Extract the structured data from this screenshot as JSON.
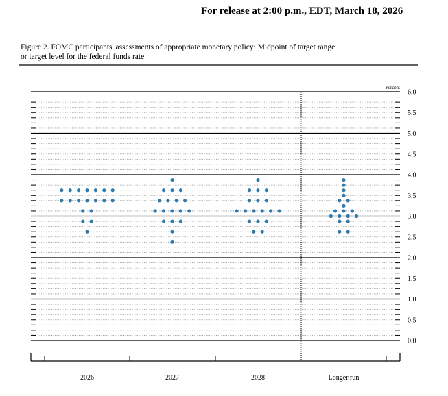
{
  "header": {
    "release_text": "For release at 2:00 p.m., EDT, March 18, 2026"
  },
  "figure": {
    "caption_line1": "Figure 2. FOMC participants' assessments of appropriate monetary policy: Midpoint of target range",
    "caption_line2": "or target level for the federal funds rate"
  },
  "chart_data": {
    "type": "scatter",
    "subtype": "dot-plot",
    "unit_label": "Percent",
    "categories": [
      "2026",
      "2027",
      "2028",
      "Longer run"
    ],
    "ylim": [
      0.0,
      6.0
    ],
    "y_ticks": [
      "6.0",
      "5.5",
      "5.0",
      "4.5",
      "4.0",
      "3.5",
      "3.0",
      "2.5",
      "2.0",
      "1.5",
      "1.0",
      "0.5",
      "0.0"
    ],
    "y_tick_values": [
      6.0,
      5.5,
      5.0,
      4.5,
      4.0,
      3.5,
      3.0,
      2.5,
      2.0,
      1.5,
      1.0,
      0.5,
      0.0
    ],
    "grid": "solid lines at whole numbers, dotted lines at 0.125 steps",
    "separator": "dotted vertical line before Longer run",
    "colors": {
      "dot": "#2e7aad",
      "line": "#000000"
    },
    "series": [
      {
        "category": "2026",
        "points": [
          {
            "y": 3.625,
            "count": 7
          },
          {
            "y": 3.375,
            "count": 7
          },
          {
            "y": 3.125,
            "count": 2
          },
          {
            "y": 2.875,
            "count": 2
          },
          {
            "y": 2.625,
            "count": 1
          }
        ]
      },
      {
        "category": "2027",
        "points": [
          {
            "y": 3.875,
            "count": 1
          },
          {
            "y": 3.625,
            "count": 3
          },
          {
            "y": 3.375,
            "count": 4
          },
          {
            "y": 3.125,
            "count": 5
          },
          {
            "y": 2.875,
            "count": 3
          },
          {
            "y": 2.625,
            "count": 1
          },
          {
            "y": 2.375,
            "count": 1
          }
        ]
      },
      {
        "category": "2028",
        "points": [
          {
            "y": 3.875,
            "count": 1
          },
          {
            "y": 3.625,
            "count": 3
          },
          {
            "y": 3.375,
            "count": 3
          },
          {
            "y": 3.125,
            "count": 6
          },
          {
            "y": 2.875,
            "count": 3
          },
          {
            "y": 2.625,
            "count": 2
          }
        ]
      },
      {
        "category": "Longer run",
        "points": [
          {
            "y": 3.875,
            "count": 1
          },
          {
            "y": 3.75,
            "count": 1
          },
          {
            "y": 3.625,
            "count": 1
          },
          {
            "y": 3.5,
            "count": 1
          },
          {
            "y": 3.375,
            "count": 2
          },
          {
            "y": 3.25,
            "count": 1
          },
          {
            "y": 3.125,
            "count": 3
          },
          {
            "y": 3.0,
            "count": 4
          },
          {
            "y": 2.875,
            "count": 2
          },
          {
            "y": 2.625,
            "count": 2
          }
        ]
      }
    ]
  }
}
